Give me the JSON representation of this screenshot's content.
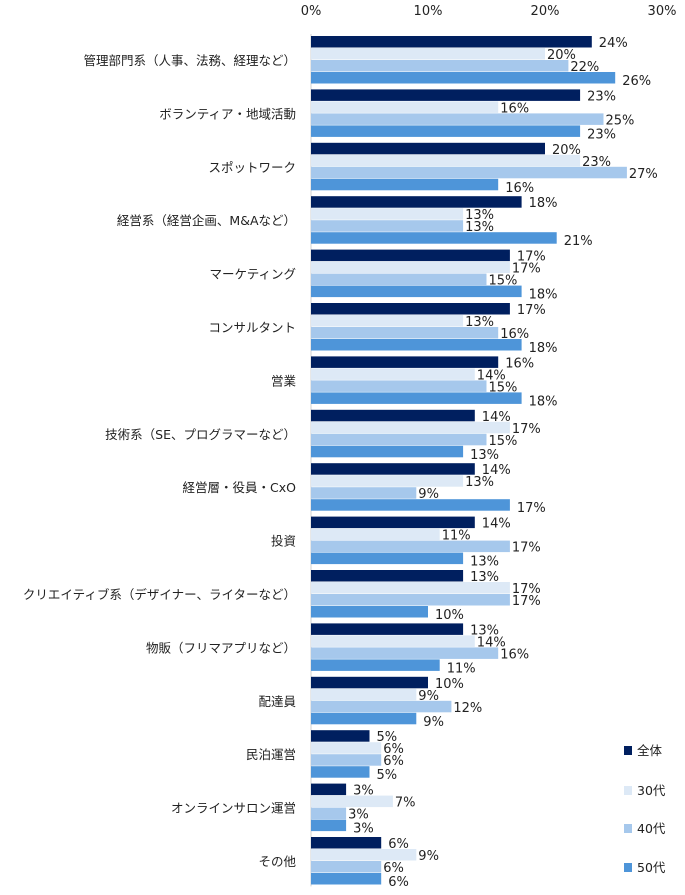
{
  "chart_data": {
    "type": "bar",
    "orientation": "horizontal",
    "title": "",
    "xlabel": "",
    "ylabel": "",
    "xlim": [
      0,
      30
    ],
    "x_ticks": [
      "0%",
      "10%",
      "20%",
      "30%"
    ],
    "x_tick_values": [
      0,
      10,
      20,
      30
    ],
    "grid": false,
    "legend_position": "bottom-right",
    "categories": [
      "管理部門系（人事、法務、経理など）",
      "ボランティア・地域活動",
      "スポットワーク",
      "経営系（経営企画、M&Aなど）",
      "マーケティング",
      "コンサルタント",
      "営業",
      "技術系（SE、プログラマーなど）",
      "経営層・役員・CxO",
      "投資",
      "クリエイティブ系（デザイナー、ライターなど）",
      "物販（フリマアプリなど）",
      "配達員",
      "民泊運営",
      "オンラインサロン運営",
      "その他"
    ],
    "series": [
      {
        "name": "全体",
        "color": "#001f5f",
        "values": [
          24,
          23,
          20,
          18,
          17,
          17,
          16,
          14,
          14,
          14,
          13,
          13,
          10,
          5,
          3,
          6
        ]
      },
      {
        "name": "30代",
        "color": "#dde9f6",
        "values": [
          20,
          16,
          23,
          13,
          17,
          13,
          14,
          17,
          13,
          11,
          17,
          14,
          9,
          6,
          7,
          9
        ]
      },
      {
        "name": "40代",
        "color": "#a6c8ec",
        "values": [
          22,
          25,
          27,
          13,
          15,
          16,
          15,
          15,
          9,
          17,
          17,
          16,
          12,
          6,
          3,
          6
        ]
      },
      {
        "name": "50代",
        "color": "#4e95d9",
        "values": [
          26,
          23,
          16,
          21,
          18,
          18,
          18,
          13,
          17,
          13,
          10,
          11,
          9,
          5,
          3,
          6
        ]
      }
    ],
    "value_suffix": "%"
  }
}
